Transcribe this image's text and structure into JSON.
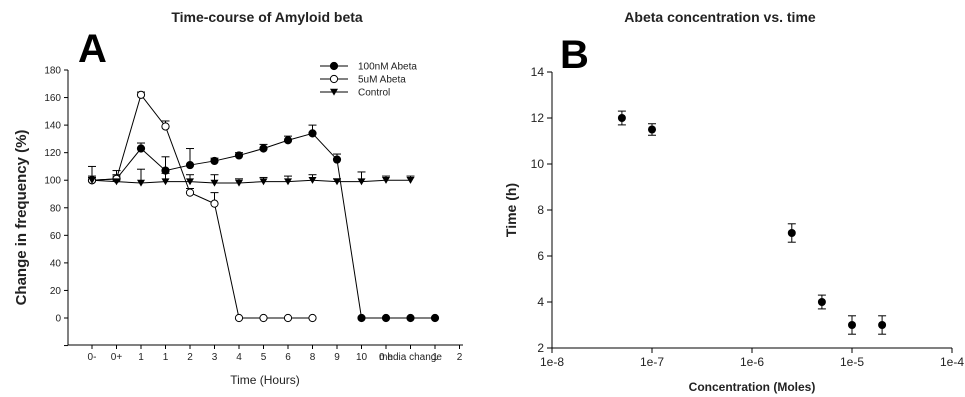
{
  "chart_data": [
    {
      "type": "line",
      "panel_label": "A",
      "title": "Time-course of Amyloid beta",
      "xlabel": "Time (Hours)",
      "ylabel": "Change in frequency (%)",
      "categories": [
        "0-",
        "0+",
        "1",
        "1",
        "2",
        "3",
        "4",
        "5",
        "6",
        "8",
        "9",
        "10",
        "0 h",
        "media change",
        "1",
        "2"
      ],
      "ylim": [
        -20,
        180
      ],
      "yticks": [
        0,
        20,
        40,
        60,
        80,
        100,
        120,
        140,
        160,
        180
      ],
      "legend_position": "top-right",
      "series": [
        {
          "name": "100nM Abeta",
          "marker": "filled-circle",
          "values": [
            100,
            101,
            123,
            107,
            111,
            114,
            118,
            123,
            129,
            134,
            115,
            0,
            0,
            0,
            0,
            null
          ],
          "errors": [
            2,
            2,
            4,
            10,
            12,
            2,
            2,
            3,
            3,
            6,
            4,
            0,
            0,
            0,
            0,
            null
          ]
        },
        {
          "name": "5uM Abeta",
          "marker": "open-circle",
          "values": [
            100,
            101,
            162,
            139,
            91,
            83,
            0,
            0,
            0,
            0,
            null,
            null,
            null,
            null,
            null,
            null
          ],
          "errors": [
            3,
            3,
            2,
            4,
            3,
            8,
            0,
            0,
            0,
            0,
            null,
            null,
            null,
            null,
            null,
            null
          ]
        },
        {
          "name": "Control",
          "marker": "filled-triangle-down",
          "values": [
            100,
            99,
            98,
            99,
            99,
            98,
            98,
            99,
            99,
            100,
            99,
            99,
            100,
            100,
            null,
            null
          ],
          "errors": [
            10,
            8,
            10,
            6,
            5,
            6,
            3,
            3,
            4,
            4,
            2,
            7,
            3,
            3,
            null,
            null
          ]
        }
      ]
    },
    {
      "type": "scatter",
      "panel_label": "B",
      "title": "Abeta concentration vs. time",
      "xlabel": "Concentration (Moles)",
      "ylabel": "Time (h)",
      "xscale": "log",
      "xlim": [
        1e-08,
        0.0001
      ],
      "xticks": [
        "1e-8",
        "1e-7",
        "1e-6",
        "1e-5",
        "1e-4"
      ],
      "ylim": [
        2,
        14
      ],
      "yticks": [
        2,
        4,
        6,
        8,
        10,
        12,
        14
      ],
      "points": [
        {
          "x": 5e-08,
          "y": 12.0,
          "err": 0.3
        },
        {
          "x": 1e-07,
          "y": 11.5,
          "err": 0.25
        },
        {
          "x": 2.5e-06,
          "y": 7.0,
          "err": 0.4
        },
        {
          "x": 5e-06,
          "y": 4.0,
          "err": 0.3
        },
        {
          "x": 1e-05,
          "y": 3.0,
          "err": 0.4
        },
        {
          "x": 2e-05,
          "y": 3.0,
          "err": 0.4
        }
      ]
    }
  ]
}
